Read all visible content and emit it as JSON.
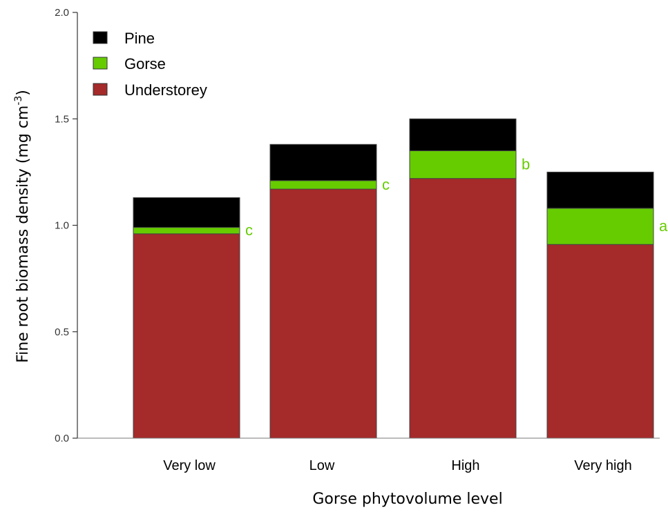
{
  "chart_data": {
    "type": "bar",
    "stacked": true,
    "categories": [
      "Very low",
      "Low",
      "High",
      "Very high"
    ],
    "series": [
      {
        "name": "Understorey",
        "color": "#a52a2a",
        "values": [
          0.96,
          1.17,
          1.22,
          0.91
        ]
      },
      {
        "name": "Gorse",
        "color": "#66cc00",
        "values": [
          0.03,
          0.04,
          0.13,
          0.17
        ]
      },
      {
        "name": "Pine",
        "color": "#000000",
        "values": [
          0.14,
          0.17,
          0.15,
          0.17
        ]
      }
    ],
    "legend": {
      "position": "top-left",
      "entries": [
        "Pine",
        "Gorse",
        "Understorey"
      ]
    },
    "significance_letters": [
      "c",
      "c",
      "b",
      "a"
    ],
    "significance_color": "#66cc00",
    "xlabel": "Gorse phytovolume level",
    "ylabel": {
      "text": "Fine root biomass density (mg cm",
      "superscript": "-3",
      "suffix": ")"
    },
    "ylim": [
      0,
      2.0
    ],
    "yticks": [
      "0.0",
      "0.5",
      "1.0",
      "1.5",
      "2.0"
    ],
    "grid": false
  }
}
